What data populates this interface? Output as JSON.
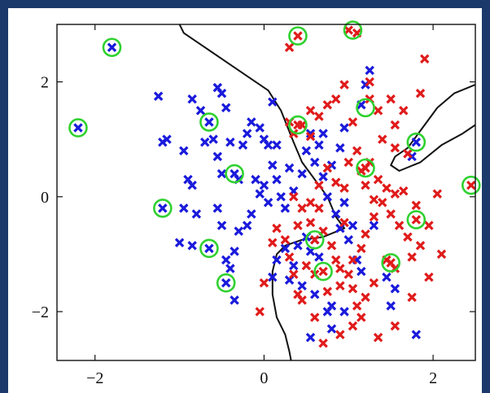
{
  "chart_data": {
    "type": "scatter",
    "title": "",
    "xlabel": "",
    "ylabel": "",
    "xlim": [
      -2.45,
      2.5
    ],
    "ylim": [
      -2.85,
      3.0
    ],
    "x_ticks": [
      -2,
      0,
      2
    ],
    "x_tick_labels": [
      "−2",
      "0",
      "2"
    ],
    "y_ticks": [
      -2,
      0,
      2
    ],
    "y_tick_labels": [
      "−2",
      "0",
      "2"
    ],
    "grid": false,
    "legend": "none",
    "colors": {
      "class_blue": "#1a1adc",
      "class_red": "#e01b1b",
      "support_vector_circle": "#2fd12f",
      "decision_boundary": "#111111"
    },
    "series": [
      {
        "marker": "x",
        "color": "#1a1adc",
        "points": [
          [
            -1.8,
            2.6
          ],
          [
            -2.2,
            1.2
          ],
          [
            -1.25,
            1.75
          ],
          [
            -1.2,
            0.95
          ],
          [
            -1.15,
            1.0
          ],
          [
            -1.2,
            -0.2
          ],
          [
            -0.95,
            0.8
          ],
          [
            -0.9,
            0.3
          ],
          [
            -0.85,
            1.7
          ],
          [
            -0.85,
            0.2
          ],
          [
            -0.75,
            1.5
          ],
          [
            -0.7,
            0.95
          ],
          [
            -0.55,
            1.9
          ],
          [
            -0.5,
            1.8
          ],
          [
            -0.45,
            1.55
          ],
          [
            -0.65,
            1.3
          ],
          [
            -0.6,
            1.0
          ],
          [
            -0.55,
            0.7
          ],
          [
            -0.5,
            0.4
          ],
          [
            -0.4,
            0.95
          ],
          [
            -0.35,
            0.4
          ],
          [
            -0.3,
            0.3
          ],
          [
            -0.25,
            0.9
          ],
          [
            -0.2,
            1.1
          ],
          [
            -0.15,
            1.3
          ],
          [
            -0.05,
            1.2
          ],
          [
            0.0,
            1.0
          ],
          [
            0.05,
            0.9
          ],
          [
            0.1,
            1.65
          ],
          [
            0.15,
            0.9
          ],
          [
            -0.95,
            -0.2
          ],
          [
            -1.0,
            -0.8
          ],
          [
            -0.85,
            -0.85
          ],
          [
            -0.8,
            -0.3
          ],
          [
            -0.65,
            -0.9
          ],
          [
            -0.55,
            -0.2
          ],
          [
            -0.5,
            -0.5
          ],
          [
            -0.45,
            -1.1
          ],
          [
            -0.4,
            -1.25
          ],
          [
            -0.35,
            -0.95
          ],
          [
            -0.3,
            -0.6
          ],
          [
            -0.35,
            -1.8
          ],
          [
            -0.45,
            -1.5
          ],
          [
            -0.2,
            -0.5
          ],
          [
            -0.15,
            -0.3
          ],
          [
            -0.1,
            0.3
          ],
          [
            -0.05,
            0.05
          ],
          [
            0.0,
            0.2
          ],
          [
            0.05,
            -0.1
          ],
          [
            0.1,
            0.55
          ],
          [
            0.15,
            0.3
          ],
          [
            0.2,
            0.0
          ],
          [
            0.25,
            -0.2
          ],
          [
            0.3,
            0.5
          ],
          [
            0.35,
            0.1
          ],
          [
            0.45,
            0.4
          ],
          [
            0.5,
            0.8
          ],
          [
            0.55,
            1.1
          ],
          [
            0.6,
            0.6
          ],
          [
            0.65,
            0.9
          ],
          [
            0.7,
            0.35
          ],
          [
            0.75,
            0.0
          ],
          [
            0.8,
            0.55
          ],
          [
            0.85,
            -0.3
          ],
          [
            0.9,
            -0.55
          ],
          [
            0.95,
            -0.1
          ],
          [
            1.0,
            -0.75
          ],
          [
            1.05,
            -0.5
          ],
          [
            1.1,
            -1.1
          ],
          [
            1.15,
            -1.3
          ],
          [
            0.5,
            -0.7
          ],
          [
            0.55,
            -0.95
          ],
          [
            0.6,
            -0.75
          ],
          [
            0.65,
            -1.05
          ],
          [
            0.4,
            -0.85
          ],
          [
            0.35,
            -1.2
          ],
          [
            0.25,
            -0.9
          ],
          [
            0.15,
            -1.1
          ],
          [
            0.1,
            -1.4
          ],
          [
            0.3,
            -1.45
          ],
          [
            0.45,
            -1.55
          ],
          [
            0.6,
            -1.7
          ],
          [
            0.8,
            -1.9
          ],
          [
            0.95,
            -2.0
          ],
          [
            0.8,
            -2.3
          ],
          [
            0.75,
            -2.0
          ],
          [
            0.55,
            -2.45
          ],
          [
            1.45,
            -1.4
          ],
          [
            1.5,
            -1.9
          ],
          [
            1.55,
            -1.6
          ],
          [
            1.8,
            -2.4
          ],
          [
            1.75,
            0.7
          ],
          [
            1.8,
            0.95
          ],
          [
            1.25,
            2.2
          ],
          [
            1.2,
            1.95
          ],
          [
            1.15,
            1.6
          ],
          [
            0.95,
            1.2
          ],
          [
            0.9,
            0.85
          ],
          [
            0.7,
            1.1
          ],
          [
            1.3,
            -0.5
          ]
        ]
      },
      {
        "marker": "x",
        "color": "#e01b1b",
        "points": [
          [
            0.4,
            2.8
          ],
          [
            0.3,
            2.6
          ],
          [
            1.0,
            2.9
          ],
          [
            1.1,
            2.85
          ],
          [
            1.9,
            2.4
          ],
          [
            1.25,
            2.0
          ],
          [
            1.25,
            1.7
          ],
          [
            0.95,
            1.95
          ],
          [
            0.85,
            1.7
          ],
          [
            0.75,
            1.6
          ],
          [
            0.55,
            1.5
          ],
          [
            0.65,
            1.4
          ],
          [
            0.45,
            1.25
          ],
          [
            0.55,
            1.05
          ],
          [
            0.35,
            1.1
          ],
          [
            0.3,
            1.3
          ],
          [
            1.35,
            1.5
          ],
          [
            1.5,
            1.7
          ],
          [
            1.65,
            1.5
          ],
          [
            1.85,
            1.8
          ],
          [
            1.55,
            1.25
          ],
          [
            1.4,
            1.0
          ],
          [
            1.55,
            0.85
          ],
          [
            1.7,
            0.75
          ],
          [
            1.05,
            1.3
          ],
          [
            1.1,
            0.8
          ],
          [
            1.0,
            0.6
          ],
          [
            1.15,
            0.45
          ],
          [
            1.2,
            0.2
          ],
          [
            1.25,
            0.6
          ],
          [
            0.95,
            0.15
          ],
          [
            0.85,
            0.25
          ],
          [
            0.75,
            0.5
          ],
          [
            0.65,
            0.2
          ],
          [
            0.55,
            -0.1
          ],
          [
            0.45,
            -0.2
          ],
          [
            0.35,
            0.0
          ],
          [
            0.4,
            -0.5
          ],
          [
            0.55,
            -0.45
          ],
          [
            0.65,
            -0.2
          ],
          [
            0.7,
            -0.6
          ],
          [
            0.8,
            -0.85
          ],
          [
            0.85,
            -1.1
          ],
          [
            0.9,
            -1.25
          ],
          [
            1.0,
            -1.35
          ],
          [
            1.05,
            -1.1
          ],
          [
            1.15,
            -0.9
          ],
          [
            1.2,
            -0.65
          ],
          [
            1.3,
            -0.35
          ],
          [
            1.4,
            -0.1
          ],
          [
            1.5,
            -0.3
          ],
          [
            1.6,
            -0.5
          ],
          [
            1.7,
            -0.7
          ],
          [
            1.85,
            -0.85
          ],
          [
            1.95,
            -0.5
          ],
          [
            1.8,
            -0.15
          ],
          [
            1.65,
            0.1
          ],
          [
            1.55,
            0.05
          ],
          [
            2.05,
            0.05
          ],
          [
            1.75,
            -1.05
          ],
          [
            1.55,
            -1.25
          ],
          [
            1.45,
            -1.1
          ],
          [
            1.3,
            -1.5
          ],
          [
            1.2,
            -1.75
          ],
          [
            1.1,
            -1.9
          ],
          [
            1.05,
            -1.6
          ],
          [
            0.9,
            -1.55
          ],
          [
            0.75,
            -1.65
          ],
          [
            0.6,
            -1.35
          ],
          [
            0.5,
            -1.2
          ],
          [
            0.35,
            -1.35
          ],
          [
            0.3,
            -1.05
          ],
          [
            0.25,
            -0.75
          ],
          [
            0.15,
            -0.55
          ],
          [
            0.1,
            -0.8
          ],
          [
            0.0,
            -1.5
          ],
          [
            -0.05,
            -2.0
          ],
          [
            0.4,
            -1.7
          ],
          [
            0.45,
            -1.8
          ],
          [
            0.6,
            -2.1
          ],
          [
            0.7,
            -2.55
          ],
          [
            0.9,
            -2.4
          ],
          [
            1.05,
            -2.25
          ],
          [
            1.15,
            -2.1
          ],
          [
            1.35,
            -2.45
          ],
          [
            1.55,
            -2.25
          ],
          [
            1.75,
            -1.75
          ],
          [
            1.95,
            -1.4
          ],
          [
            2.1,
            -1.0
          ],
          [
            1.35,
            0.3
          ],
          [
            1.45,
            0.15
          ],
          [
            2.45,
            0.2
          ],
          [
            1.8,
            -0.4
          ],
          [
            1.5,
            -1.15
          ],
          [
            1.2,
            0.5
          ],
          [
            0.7,
            -1.3
          ],
          [
            0.6,
            -0.75
          ],
          [
            0.4,
            1.25
          ],
          [
            1.3,
            -0.05
          ],
          [
            0.95,
            -0.45
          ]
        ]
      }
    ],
    "support_vectors": [
      [
        -1.8,
        2.6
      ],
      [
        -2.2,
        1.2
      ],
      [
        -1.2,
        -0.2
      ],
      [
        -0.65,
        1.3
      ],
      [
        -0.35,
        0.4
      ],
      [
        -0.65,
        -0.9
      ],
      [
        -0.45,
        -1.5
      ],
      [
        0.4,
        2.8
      ],
      [
        1.05,
        2.9
      ],
      [
        0.4,
        1.25
      ],
      [
        1.2,
        1.55
      ],
      [
        1.8,
        0.95
      ],
      [
        1.2,
        0.5
      ],
      [
        2.45,
        0.2
      ],
      [
        1.8,
        -0.4
      ],
      [
        0.6,
        -0.75
      ],
      [
        0.7,
        -1.3
      ],
      [
        1.5,
        -1.15
      ]
    ],
    "decision_boundary": [
      [
        [
          -1.0,
          3.0
        ],
        [
          -0.95,
          2.85
        ],
        [
          -0.7,
          2.6
        ],
        [
          -0.4,
          2.3
        ],
        [
          -0.15,
          2.05
        ],
        [
          0.05,
          1.85
        ],
        [
          0.2,
          1.5
        ],
        [
          0.35,
          0.95
        ],
        [
          0.45,
          0.6
        ],
        [
          0.6,
          0.3
        ],
        [
          0.75,
          0.0
        ],
        [
          0.85,
          -0.35
        ],
        [
          0.95,
          -0.55
        ],
        [
          0.7,
          -0.7
        ],
        [
          0.45,
          -0.75
        ],
        [
          0.25,
          -0.85
        ],
        [
          0.15,
          -1.0
        ],
        [
          0.1,
          -1.3
        ],
        [
          0.1,
          -1.7
        ],
        [
          0.15,
          -2.1
        ],
        [
          0.25,
          -2.4
        ],
        [
          0.3,
          -2.7
        ],
        [
          0.32,
          -2.85
        ]
      ],
      [
        [
          2.5,
          1.95
        ],
        [
          2.25,
          1.8
        ],
        [
          2.05,
          1.55
        ],
        [
          1.85,
          1.15
        ],
        [
          1.7,
          0.85
        ],
        [
          1.55,
          0.7
        ],
        [
          1.5,
          0.55
        ],
        [
          1.6,
          0.45
        ],
        [
          1.85,
          0.6
        ],
        [
          2.1,
          0.9
        ],
        [
          2.35,
          1.1
        ],
        [
          2.5,
          1.25
        ]
      ]
    ]
  }
}
